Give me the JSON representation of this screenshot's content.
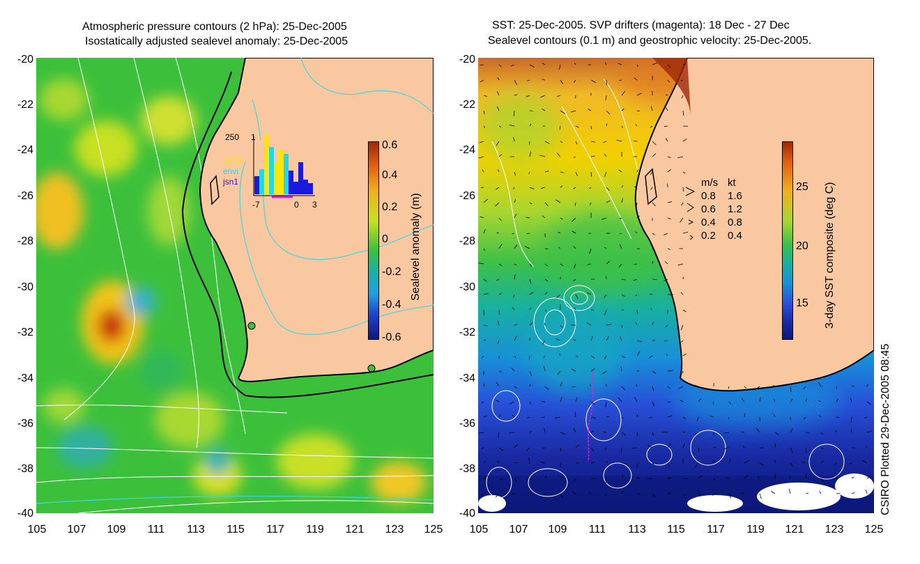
{
  "left_panel": {
    "title_line1": "Atmospheric pressure contours (2 hPa): 25-Dec-2005",
    "title_line2": "Isostatically adjusted sealevel anomaly: 25-Dec-2005",
    "colorbar_label": "Sealevel anomaly (m)",
    "colorbar_ticks": [
      "0.6",
      "0.4",
      "0.2",
      "0",
      "-0.2",
      "-0.4",
      "-0.6"
    ],
    "inset": {
      "y_max": "250",
      "y_min": "1",
      "legend": [
        {
          "name": "GFO",
          "color": "#ffe600"
        },
        {
          "name": "envi",
          "color": "#22d8e8"
        },
        {
          "name": "jsn1",
          "color": "#1a1adc"
        }
      ],
      "x_ticks": [
        "-7",
        "0",
        "3"
      ]
    }
  },
  "right_panel": {
    "title_line1": "SST: 25-Dec-2005. SVP drifters (magenta): 18 Dec - 27 Dec",
    "title_line2": "Sealevel contours (0.1 m) and geostrophic velocity: 25-Dec-2005.",
    "colorbar_label": "3-day SST composite (deg C)",
    "colorbar_ticks": [
      "25",
      "20",
      "15"
    ],
    "velocity_key": {
      "header_ms": "m/s",
      "header_kt": "kt",
      "rows": [
        {
          "ms": "0.8",
          "kt": "1.6"
        },
        {
          "ms": "0.6",
          "kt": "1.2"
        },
        {
          "ms": "0.4",
          "kt": "0.8"
        },
        {
          "ms": "0.2",
          "kt": "0.4"
        }
      ]
    }
  },
  "axes": {
    "x_ticks": [
      "105",
      "107",
      "109",
      "111",
      "113",
      "115",
      "117",
      "119",
      "121",
      "123",
      "125"
    ],
    "y_ticks": [
      "-20",
      "-22",
      "-24",
      "-26",
      "-28",
      "-30",
      "-32",
      "-34",
      "-36",
      "-38",
      "-40"
    ],
    "lon_range": [
      105,
      125
    ],
    "lat_range": [
      -20,
      -40
    ]
  },
  "credit": "CSIRO Plotted 29-Dec-2005 08:45",
  "colors": {
    "land": "#f9c8a0",
    "coast": "#000000",
    "pressure_contour": "#ffffff",
    "cyan_contour": "#40d8e0",
    "drifter": "#e020e0"
  }
}
